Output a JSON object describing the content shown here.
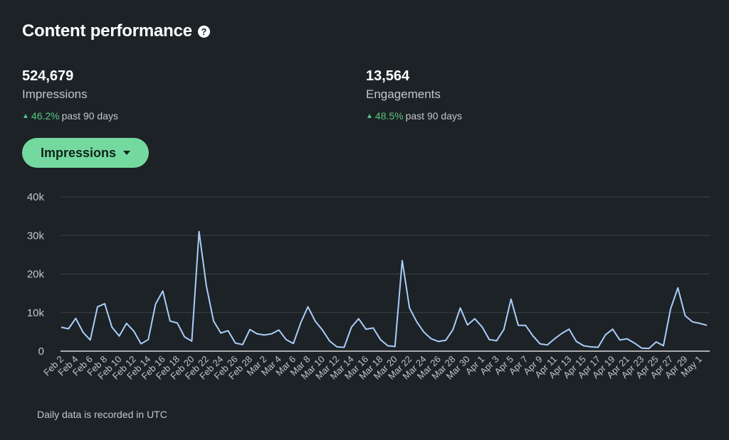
{
  "header": {
    "title": "Content performance",
    "help_glyph": "?",
    "help_icon": "question-circle-icon"
  },
  "metrics": [
    {
      "value": "524,679",
      "label": "Impressions",
      "change": "46.2%",
      "period": "past 90 days"
    },
    {
      "value": "13,564",
      "label": "Engagements",
      "change": "48.5%",
      "period": "past 90 days"
    }
  ],
  "metric_selector": {
    "label": "Impressions",
    "icon": "caret-down-icon"
  },
  "colors": {
    "background": "#1d2226",
    "line": "#a9cdfa",
    "accent_green": "#74d99f",
    "positive": "#57c785",
    "grid": "#3c4145"
  },
  "chart_data": {
    "type": "line",
    "title": "",
    "xlabel": "",
    "ylabel": "",
    "ylim": [
      0,
      40000
    ],
    "y_ticks": [
      "0",
      "10k",
      "20k",
      "30k",
      "40k"
    ],
    "grid": true,
    "x": [
      "Feb 2",
      "Feb 3",
      "Feb 4",
      "Feb 5",
      "Feb 6",
      "Feb 7",
      "Feb 8",
      "Feb 9",
      "Feb 10",
      "Feb 11",
      "Feb 12",
      "Feb 13",
      "Feb 14",
      "Feb 15",
      "Feb 16",
      "Feb 17",
      "Feb 18",
      "Feb 19",
      "Feb 20",
      "Feb 21",
      "Feb 22",
      "Feb 23",
      "Feb 24",
      "Feb 25",
      "Feb 26",
      "Feb 27",
      "Feb 28",
      "Mar 1",
      "Mar 2",
      "Mar 3",
      "Mar 4",
      "Mar 5",
      "Mar 6",
      "Mar 7",
      "Mar 8",
      "Mar 9",
      "Mar 10",
      "Mar 11",
      "Mar 12",
      "Mar 13",
      "Mar 14",
      "Mar 15",
      "Mar 16",
      "Mar 17",
      "Mar 18",
      "Mar 19",
      "Mar 20",
      "Mar 21",
      "Mar 22",
      "Mar 23",
      "Mar 24",
      "Mar 25",
      "Mar 26",
      "Mar 27",
      "Mar 28",
      "Mar 29",
      "Mar 30",
      "Mar 31",
      "Apr 1",
      "Apr 2",
      "Apr 3",
      "Apr 4",
      "Apr 5",
      "Apr 6",
      "Apr 7",
      "Apr 8",
      "Apr 9",
      "Apr 10",
      "Apr 11",
      "Apr 12",
      "Apr 13",
      "Apr 14",
      "Apr 15",
      "Apr 16",
      "Apr 17",
      "Apr 18",
      "Apr 19",
      "Apr 20",
      "Apr 21",
      "Apr 22",
      "Apr 23",
      "Apr 24",
      "Apr 25",
      "Apr 26",
      "Apr 27",
      "Apr 28",
      "Apr 29",
      "Apr 30",
      "May 1",
      "May 2"
    ],
    "series": [
      {
        "values": [
          6200,
          5800,
          8500,
          4900,
          2900,
          11500,
          12300,
          6200,
          3900,
          7200,
          5200,
          1900,
          3000,
          12200,
          15600,
          7800,
          7300,
          3700,
          2600,
          31000,
          17000,
          7800,
          4700,
          5300,
          2100,
          1700,
          5600,
          4500,
          4200,
          4500,
          5500,
          3000,
          2000,
          7300,
          11500,
          7800,
          5500,
          2600,
          1100,
          1000,
          6200,
          8400,
          5700,
          6000,
          3000,
          1400,
          1200,
          23500,
          11200,
          7600,
          4900,
          3200,
          2500,
          2800,
          5600,
          11200,
          6800,
          8400,
          6300,
          3000,
          2700,
          5600,
          13500,
          6700,
          6700,
          4000,
          1900,
          1600,
          3200,
          4600,
          5700,
          2500,
          1400,
          1100,
          1000,
          4200,
          5700,
          2900,
          3200,
          2100,
          800,
          700,
          2400,
          1400,
          11000,
          16400,
          9200,
          7600,
          7200,
          6700
        ]
      }
    ],
    "x_tick_labels": [
      "Feb 2",
      "Feb 4",
      "Feb 6",
      "Feb 8",
      "Feb 10",
      "Feb 12",
      "Feb 14",
      "Feb 16",
      "Feb 18",
      "Feb 20",
      "Feb 22",
      "Feb 24",
      "Feb 26",
      "Feb 28",
      "Mar 2",
      "Mar 4",
      "Mar 6",
      "Mar 8",
      "Mar 10",
      "Mar 12",
      "Mar 14",
      "Mar 16",
      "Mar 18",
      "Mar 20",
      "Mar 22",
      "Mar 24",
      "Mar 26",
      "Mar 28",
      "Mar 30",
      "Apr 1",
      "Apr 3",
      "Apr 5",
      "Apr 7",
      "Apr 9",
      "Apr 11",
      "Apr 13",
      "Apr 15",
      "Apr 17",
      "Apr 19",
      "Apr 21",
      "Apr 23",
      "Apr 25",
      "Apr 27",
      "Apr 29",
      "May 1"
    ]
  },
  "footnote": "Daily data is recorded in UTC"
}
